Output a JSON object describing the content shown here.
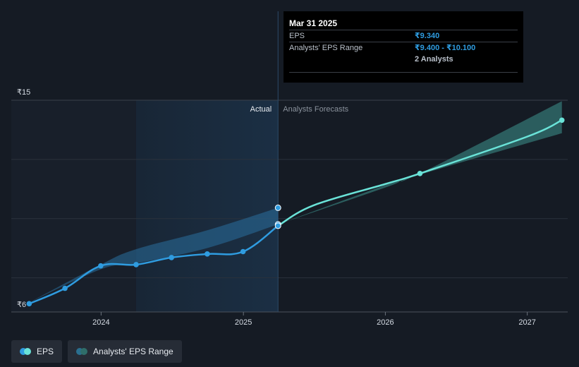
{
  "tooltip": {
    "date": "Mar 31 2025",
    "rows": [
      {
        "label": "EPS",
        "value": "₹9.340"
      },
      {
        "label": "Analysts' EPS Range",
        "value": "₹9.400 - ₹10.100"
      },
      {
        "label": "",
        "value": "2 Analysts"
      }
    ]
  },
  "region_labels": {
    "actual": "Actual",
    "forecast": "Analysts Forecasts"
  },
  "legend": [
    {
      "label": "EPS",
      "colors": [
        "#2f9ce0",
        "#6ae3d8"
      ]
    },
    {
      "label": "Analysts' EPS Range",
      "colors": [
        "#2a6f8f",
        "#2f6e6a"
      ]
    }
  ],
  "colors": {
    "background": "#151b24",
    "eps_actual": "#2f9ce0",
    "eps_forecast": "#6ae3d8",
    "range_past": "#2a6f9f",
    "range_forecast": "#3b8a86",
    "highlight": "#1b2f44"
  },
  "chart_data": {
    "type": "line",
    "title": "",
    "xlabel": "",
    "ylabel": "",
    "y_tick_labels": [
      "₹15",
      "₹6"
    ],
    "ylim": [
      6,
      15
    ],
    "xlim": [
      "2023-05-15",
      "2027-04-15"
    ],
    "x_tick_labels": [
      "2024",
      "2025",
      "2026",
      "2027"
    ],
    "x_ticks": [
      "2024-01-01",
      "2025-01-01",
      "2026-01-01",
      "2027-01-01"
    ],
    "grid": true,
    "legend_position": "bottom-left",
    "highlight_range": [
      "2024-03-31",
      "2025-03-31"
    ],
    "series": [
      {
        "name": "EPS",
        "kind": "actual",
        "points": [
          {
            "x": "2023-06-30",
            "y": 6.05
          },
          {
            "x": "2023-09-30",
            "y": 6.7
          },
          {
            "x": "2023-12-31",
            "y": 7.65
          },
          {
            "x": "2024-03-31",
            "y": 7.7
          },
          {
            "x": "2024-06-30",
            "y": 8.0
          },
          {
            "x": "2024-09-30",
            "y": 8.15
          },
          {
            "x": "2024-12-31",
            "y": 8.25
          },
          {
            "x": "2025-03-31",
            "y": 9.34
          }
        ]
      },
      {
        "name": "EPS",
        "kind": "forecast",
        "points": [
          {
            "x": "2025-03-31",
            "y": 9.34
          },
          {
            "x": "2025-06-30",
            "y": 10.2
          },
          {
            "x": "2025-12-31",
            "y": 11.1
          },
          {
            "x": "2026-03-31",
            "y": 11.55
          },
          {
            "x": "2026-12-31",
            "y": 13.1
          },
          {
            "x": "2027-03-31",
            "y": 13.8
          }
        ]
      },
      {
        "name": "Analysts' EPS Range",
        "kind": "range-past",
        "points": [
          {
            "x": "2023-06-30",
            "low": 6.1,
            "high": 6.1
          },
          {
            "x": "2023-12-31",
            "low": 7.5,
            "high": 7.7
          },
          {
            "x": "2024-03-31",
            "low": 7.75,
            "high": 8.35
          },
          {
            "x": "2024-09-30",
            "low": 8.4,
            "high": 9.15
          },
          {
            "x": "2025-03-31",
            "low": 9.4,
            "high": 10.1
          }
        ]
      },
      {
        "name": "Analysts' EPS Range",
        "kind": "range-forecast",
        "points": [
          {
            "x": "2025-03-31",
            "low": 9.4,
            "high": 9.4
          },
          {
            "x": "2025-12-31",
            "low": 10.95,
            "high": 11.05
          },
          {
            "x": "2026-03-31",
            "low": 11.5,
            "high": 11.55
          },
          {
            "x": "2027-03-31",
            "low": 13.25,
            "high": 14.6
          }
        ]
      }
    ],
    "extra_markers": [
      {
        "x": "2025-03-31",
        "y": 10.1
      },
      {
        "x": "2025-03-31",
        "y": 9.4
      }
    ]
  }
}
